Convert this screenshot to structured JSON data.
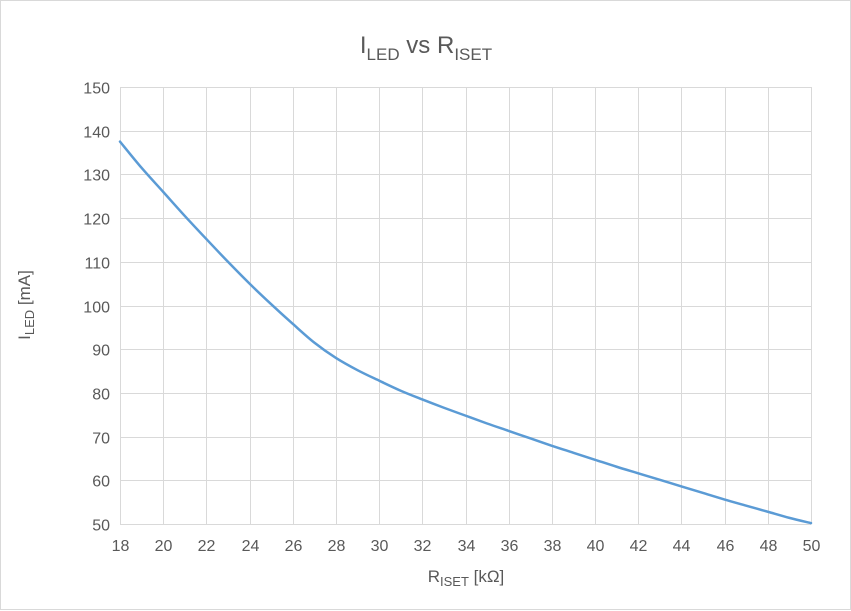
{
  "chart_data": {
    "type": "line",
    "title": {
      "main": "I",
      "main_sub": "LED",
      "middle": " vs ",
      "end": "R",
      "end_sub": "ISET"
    },
    "xlabel": {
      "main": "R",
      "sub": "ISET",
      "unit": " [kΩ]"
    },
    "ylabel": {
      "main": "I",
      "sub": "LED",
      "unit": " [mA]"
    },
    "xlim": [
      18,
      50
    ],
    "ylim": [
      50,
      150
    ],
    "x_ticks": [
      "18",
      "20",
      "22",
      "24",
      "26",
      "28",
      "30",
      "32",
      "34",
      "36",
      "38",
      "40",
      "42",
      "44",
      "46",
      "48",
      "50"
    ],
    "y_ticks": [
      "50",
      "60",
      "70",
      "80",
      "90",
      "100",
      "110",
      "120",
      "130",
      "140",
      "150"
    ],
    "grid": true,
    "legend": "none",
    "colors": {
      "line": "#5b9bd5",
      "grid": "#d9d9d9",
      "text": "#595959"
    },
    "series": [
      {
        "x": [
          18,
          19,
          20,
          21,
          22,
          23,
          24,
          25,
          26,
          27,
          28,
          29,
          30,
          31,
          32,
          33,
          34,
          35,
          36,
          37,
          38,
          39,
          40,
          41,
          42,
          43,
          44,
          45,
          46,
          47,
          48,
          49,
          50
        ],
        "values": [
          137.5,
          131.5,
          126,
          120.5,
          115.2,
          110,
          105,
          100.3,
          95.8,
          91.5,
          88,
          85.2,
          82.8,
          80.5,
          78.5,
          76.6,
          74.8,
          73,
          71.3,
          69.6,
          67.9,
          66.3,
          64.7,
          63.1,
          61.6,
          60.1,
          58.6,
          57.1,
          55.6,
          54.2,
          52.8,
          51.4,
          50.2
        ]
      }
    ]
  }
}
